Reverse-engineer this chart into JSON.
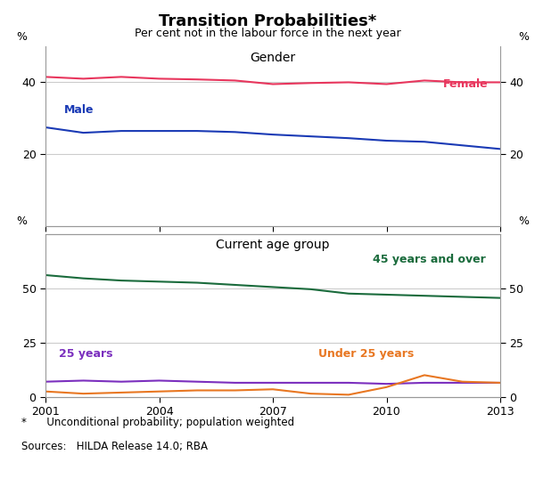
{
  "title": "Transition Probabilities*",
  "subtitle": "Per cent not in the labour force in the next year",
  "footnote1": "*      Unconditional probability; population weighted",
  "footnote2": "Sources:   HILDA Release 14.0; RBA",
  "years": [
    2001,
    2002,
    2003,
    2004,
    2005,
    2006,
    2007,
    2008,
    2009,
    2010,
    2011,
    2012,
    2013
  ],
  "female": [
    41.5,
    41.0,
    41.5,
    41.0,
    40.8,
    40.5,
    39.5,
    39.8,
    40.0,
    39.5,
    40.5,
    40.0,
    40.0
  ],
  "male": [
    27.5,
    26.0,
    26.5,
    26.5,
    26.5,
    26.2,
    25.5,
    25.0,
    24.5,
    23.8,
    23.5,
    22.5,
    21.5
  ],
  "age45over": [
    56.0,
    54.5,
    53.5,
    53.0,
    52.5,
    51.5,
    50.5,
    49.5,
    47.5,
    47.0,
    46.5,
    46.0,
    45.5
  ],
  "age25_44": [
    7.0,
    7.5,
    7.0,
    7.5,
    7.0,
    6.5,
    6.5,
    6.5,
    6.5,
    6.0,
    6.5,
    6.5,
    6.5
  ],
  "under25": [
    2.5,
    1.5,
    2.0,
    2.5,
    3.0,
    3.0,
    3.5,
    1.5,
    1.0,
    4.5,
    10.0,
    7.0,
    6.5
  ],
  "female_color": "#e8365d",
  "male_color": "#1a3ab5",
  "age45over_color": "#1a6b3c",
  "age25_44_color": "#7b2fbe",
  "under25_color": "#e87722",
  "panel1_ylim": [
    0,
    50
  ],
  "panel2_ylim": [
    0,
    75
  ],
  "panel1_yticks": [
    20,
    40
  ],
  "panel2_yticks": [
    0,
    25,
    50
  ],
  "xlim": [
    2001,
    2013
  ],
  "xticks": [
    2001,
    2004,
    2007,
    2010,
    2013
  ],
  "panel1_label": "Gender",
  "panel2_label": "Current age group",
  "label_female": "Female",
  "label_male": "Male",
  "label_45over": "45 years and over",
  "label_25_44": "25 years",
  "label_under25": "Under 25 years",
  "background_color": "#ffffff",
  "grid_color": "#cccccc",
  "linewidth": 1.5
}
